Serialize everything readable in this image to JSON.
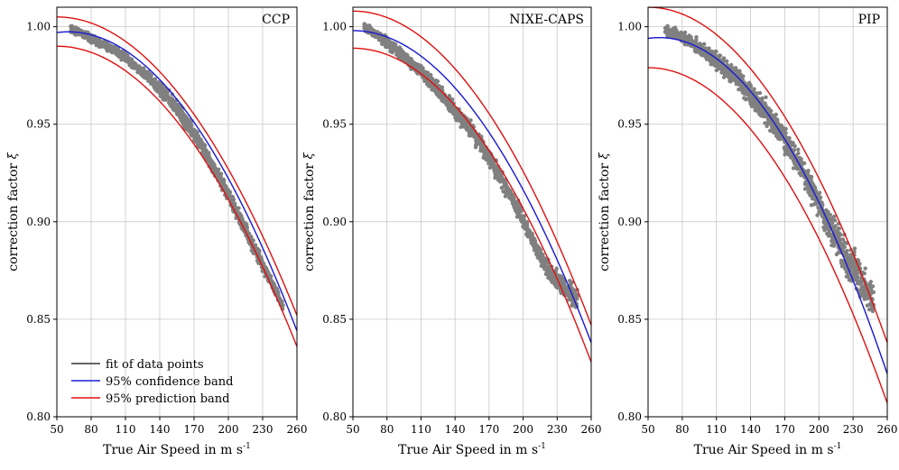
{
  "chart_data": [
    {
      "type": "scatter",
      "title": "CCP",
      "xlabel": "True Air Speed in m s",
      "xlabel_sup": "-1",
      "ylabel": "correction factor",
      "ylabel_symbol": "ξ",
      "xlim": [
        50,
        260
      ],
      "ylim": [
        0.8,
        1.01
      ],
      "xticks": [
        50,
        80,
        110,
        140,
        170,
        200,
        230,
        260
      ],
      "yticks": [
        0.8,
        0.85,
        0.9,
        0.95,
        1.0
      ],
      "ytick_labels": [
        "0.80",
        "0.85",
        "0.90",
        "0.95",
        "1.00"
      ],
      "grid": true,
      "legend": {
        "placement": "bottom-left",
        "entries": [
          {
            "label": "fit of data points",
            "color": "#333333"
          },
          {
            "label": "95% confidence band",
            "color": "#1c1cd6"
          },
          {
            "label": "95% prediction band",
            "color": "#e01010"
          }
        ]
      },
      "series": [
        {
          "role": "scatter",
          "color": "#808080",
          "x": [
            62,
            70,
            80,
            90,
            100,
            110,
            120,
            130,
            140,
            150,
            160,
            170,
            180,
            190,
            200,
            210,
            220,
            230,
            240,
            248
          ],
          "y": [
            0.999,
            0.997,
            0.994,
            0.991,
            0.988,
            0.984,
            0.979,
            0.974,
            0.968,
            0.962,
            0.954,
            0.945,
            0.935,
            0.925,
            0.914,
            0.902,
            0.89,
            0.878,
            0.866,
            0.856
          ],
          "spread": [
            0.003,
            0.003,
            0.003,
            0.003,
            0.003,
            0.003,
            0.003,
            0.004,
            0.005,
            0.005,
            0.005,
            0.005,
            0.005,
            0.005,
            0.005,
            0.005,
            0.005,
            0.005,
            0.004,
            0.004
          ]
        },
        {
          "role": "fit",
          "color": "#333333",
          "x": [
            50,
            260
          ],
          "y": [
            0.997,
            0.844
          ],
          "peak": 60
        },
        {
          "role": "confidence",
          "color": "#1c1cd6",
          "x": [
            50,
            260
          ],
          "y": [
            0.997,
            0.844
          ],
          "peak": 60
        },
        {
          "role": "prediction-upper",
          "color": "#e01010",
          "x": [
            50,
            260
          ],
          "y": [
            1.005,
            0.852
          ],
          "peak": 50
        },
        {
          "role": "prediction-lower",
          "color": "#e01010",
          "x": [
            50,
            260
          ],
          "y": [
            0.99,
            0.836
          ],
          "peak": 50
        }
      ]
    },
    {
      "type": "scatter",
      "title": "NIXE-CAPS",
      "xlabel": "True Air Speed in m s",
      "xlabel_sup": "-1",
      "ylabel": "correction factor",
      "ylabel_symbol": "ξ",
      "xlim": [
        50,
        260
      ],
      "ylim": [
        0.8,
        1.01
      ],
      "xticks": [
        50,
        80,
        110,
        140,
        170,
        200,
        230,
        260
      ],
      "yticks": [
        0.8,
        0.85,
        0.9,
        0.95,
        1.0
      ],
      "ytick_labels": [
        "0.80",
        "0.85",
        "0.90",
        "0.95",
        "1.00"
      ],
      "grid": true,
      "series": [
        {
          "role": "scatter",
          "color": "#808080",
          "x": [
            60,
            70,
            80,
            90,
            100,
            110,
            120,
            130,
            140,
            150,
            160,
            170,
            180,
            190,
            200,
            210,
            220,
            230,
            240,
            248
          ],
          "y": [
            1.0,
            0.996,
            0.992,
            0.987,
            0.982,
            0.977,
            0.971,
            0.964,
            0.957,
            0.95,
            0.942,
            0.933,
            0.923,
            0.912,
            0.901,
            0.889,
            0.877,
            0.87,
            0.864,
            0.86
          ],
          "spread": [
            0.003,
            0.003,
            0.004,
            0.004,
            0.004,
            0.004,
            0.005,
            0.005,
            0.006,
            0.006,
            0.006,
            0.006,
            0.006,
            0.006,
            0.006,
            0.006,
            0.006,
            0.007,
            0.008,
            0.008
          ]
        },
        {
          "role": "fit",
          "color": "#333333",
          "x": [
            50,
            260
          ],
          "y": [
            0.998,
            0.838
          ],
          "peak": 50
        },
        {
          "role": "confidence",
          "color": "#1c1cd6",
          "x": [
            50,
            260
          ],
          "y": [
            0.998,
            0.838
          ],
          "peak": 50
        },
        {
          "role": "prediction-upper",
          "color": "#e01010",
          "x": [
            50,
            260
          ],
          "y": [
            1.008,
            0.847
          ],
          "peak": 50
        },
        {
          "role": "prediction-lower",
          "color": "#e01010",
          "x": [
            50,
            260
          ],
          "y": [
            0.989,
            0.828
          ],
          "peak": 50
        }
      ]
    },
    {
      "type": "scatter",
      "title": "PIP",
      "xlabel": "True Air Speed in m s",
      "xlabel_sup": "-1",
      "ylabel": "correction factor",
      "ylabel_symbol": "ξ",
      "xlim": [
        50,
        260
      ],
      "ylim": [
        0.8,
        1.01
      ],
      "xticks": [
        50,
        80,
        110,
        140,
        170,
        200,
        230,
        260
      ],
      "yticks": [
        0.8,
        0.85,
        0.9,
        0.95,
        1.0
      ],
      "ytick_labels": [
        "0.80",
        "0.85",
        "0.90",
        "0.95",
        "1.00"
      ],
      "grid": true,
      "series": [
        {
          "role": "scatter",
          "color": "#808080",
          "x": [
            65,
            75,
            85,
            95,
            105,
            115,
            125,
            135,
            145,
            155,
            165,
            175,
            185,
            195,
            205,
            215,
            225,
            235,
            242,
            248
          ],
          "y": [
            0.998,
            0.996,
            0.993,
            0.989,
            0.985,
            0.98,
            0.975,
            0.969,
            0.962,
            0.955,
            0.947,
            0.937,
            0.927,
            0.916,
            0.903,
            0.892,
            0.88,
            0.872,
            0.865,
            0.86
          ],
          "spread": [
            0.003,
            0.004,
            0.004,
            0.005,
            0.006,
            0.007,
            0.007,
            0.008,
            0.008,
            0.008,
            0.008,
            0.008,
            0.009,
            0.01,
            0.011,
            0.012,
            0.013,
            0.013,
            0.012,
            0.011
          ]
        },
        {
          "role": "fit",
          "color": "#333333",
          "x": [
            50,
            260
          ],
          "y": [
            0.994,
            0.822
          ],
          "peak": 60
        },
        {
          "role": "confidence",
          "color": "#1c1cd6",
          "x": [
            50,
            260
          ],
          "y": [
            0.994,
            0.822
          ],
          "peak": 60
        },
        {
          "role": "prediction-upper",
          "color": "#e01010",
          "x": [
            50,
            260
          ],
          "y": [
            1.01,
            0.838
          ],
          "peak": 50
        },
        {
          "role": "prediction-lower",
          "color": "#e01010",
          "x": [
            50,
            260
          ],
          "y": [
            0.979,
            0.807
          ],
          "peak": 50
        }
      ]
    }
  ]
}
